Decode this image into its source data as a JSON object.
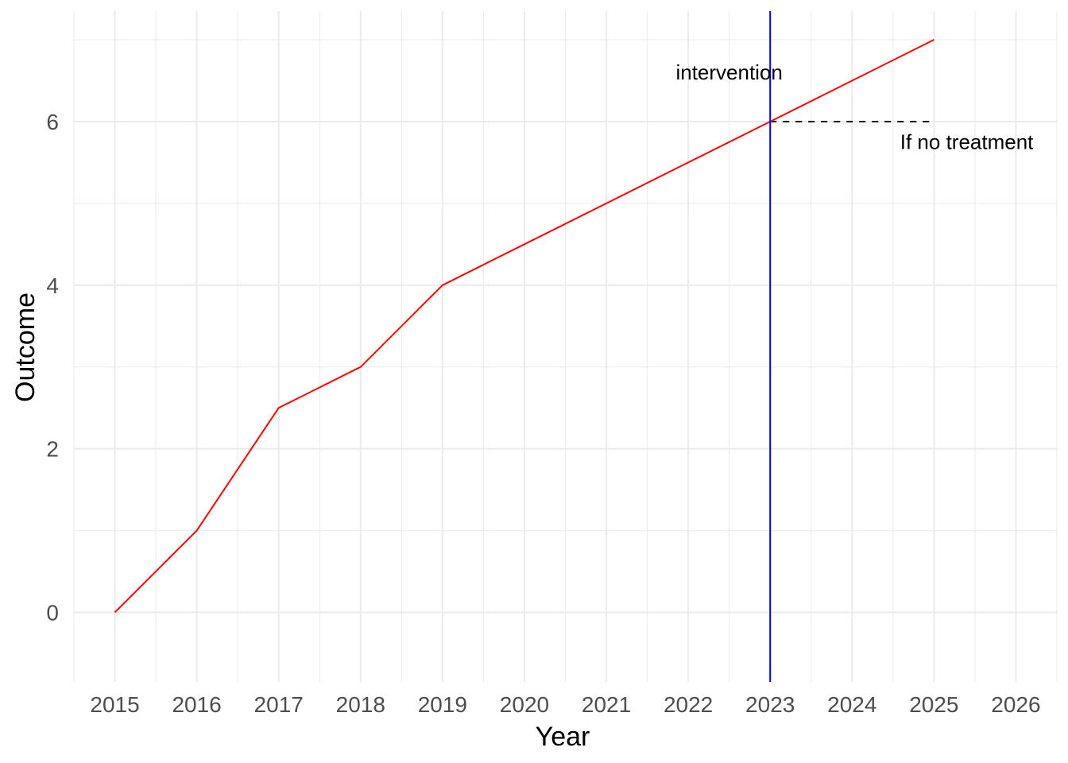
{
  "chart_data": {
    "type": "line",
    "title": "",
    "xlabel": "Year",
    "ylabel": "Outcome",
    "xlim": [
      2014.5,
      2026.5
    ],
    "ylim": [
      -0.85,
      7.35
    ],
    "x_ticks": [
      2015,
      2016,
      2017,
      2018,
      2019,
      2020,
      2021,
      2022,
      2023,
      2024,
      2025,
      2026
    ],
    "y_ticks": [
      0,
      2,
      4,
      6
    ],
    "grid": true,
    "legend": "none",
    "colors": {
      "series": "#ff0000",
      "intervention_line": "#0000ff",
      "counterfactual": "#000000",
      "grid": "#ebebeb",
      "tick_text": "#4d4d4d"
    },
    "series": [
      {
        "x": [
          2015,
          2016,
          2017,
          2018,
          2019,
          2020,
          2021,
          2022,
          2023,
          2024,
          2025
        ],
        "y": [
          0,
          1,
          2.5,
          3,
          4,
          4.5,
          5,
          5.5,
          6,
          6.5,
          7
        ]
      }
    ],
    "intervention": {
      "x": 2023
    },
    "counterfactual": {
      "x": [
        2023,
        2025
      ],
      "y": [
        6,
        6
      ],
      "style": "dashed"
    },
    "annotations": [
      {
        "text": "intervention",
        "x": 2022.5,
        "y": 6.6
      },
      {
        "text": "If no treatment",
        "x": 2025.4,
        "y": 5.75
      }
    ]
  }
}
